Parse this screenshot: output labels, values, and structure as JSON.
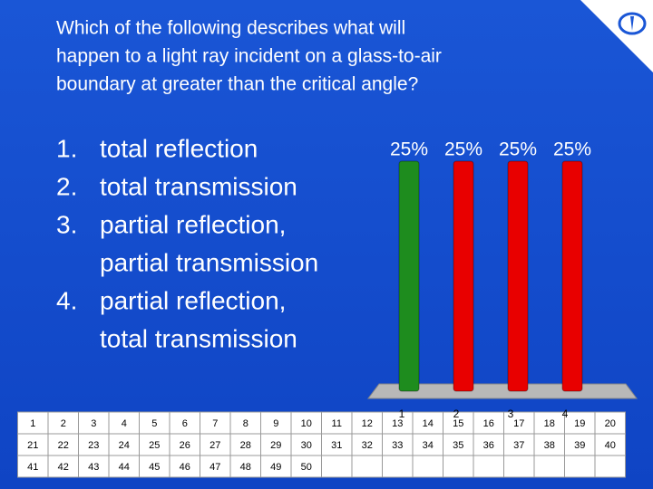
{
  "question": [
    "Which of the following describes what will",
    "happen to a light ray incident on a glass-to-air",
    "boundary at greater than the critical angle?"
  ],
  "options": [
    {
      "number": "1.",
      "lines": [
        "total reflection"
      ]
    },
    {
      "number": "2.",
      "lines": [
        "total transmission"
      ]
    },
    {
      "number": "3.",
      "lines": [
        "partial reflection,",
        "partial transmission"
      ]
    },
    {
      "number": "4.",
      "lines": [
        "partial reflection,",
        "total transmission"
      ]
    }
  ],
  "chart_data": {
    "type": "bar",
    "categories": [
      "1",
      "2",
      "3",
      "4"
    ],
    "values": [
      25,
      25,
      25,
      25
    ],
    "value_labels": [
      "25%",
      "25%",
      "25%",
      "25%"
    ],
    "colors": [
      "#1e8c1e",
      "#e80000",
      "#e80000",
      "#e80000"
    ]
  },
  "response_grid": [
    1,
    2,
    3,
    4,
    5,
    6,
    7,
    8,
    9,
    10,
    11,
    12,
    13,
    14,
    15,
    16,
    17,
    18,
    19,
    20,
    21,
    22,
    23,
    24,
    25,
    26,
    27,
    28,
    29,
    30,
    31,
    32,
    33,
    34,
    35,
    36,
    37,
    38,
    39,
    40,
    41,
    42,
    43,
    44,
    45,
    46,
    47,
    48,
    49,
    50
  ]
}
